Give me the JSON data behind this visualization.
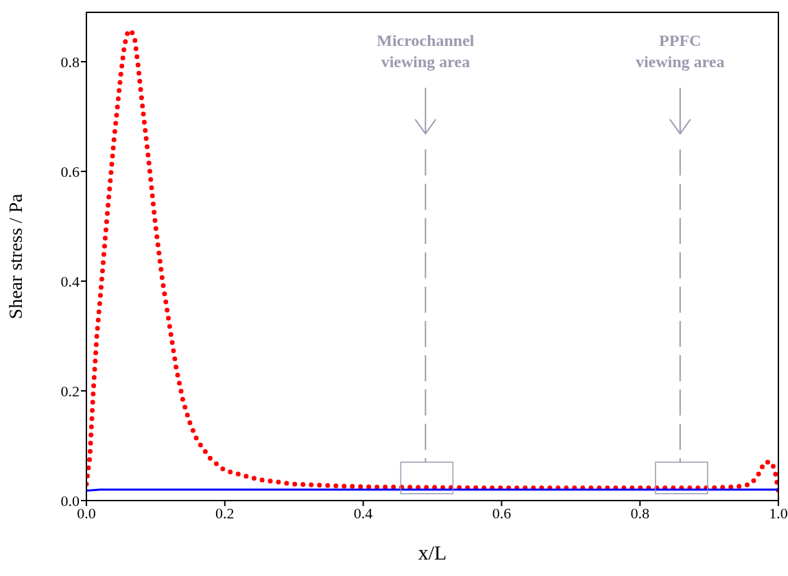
{
  "chart_data": {
    "type": "line",
    "xlabel": "x/L",
    "ylabel": "Shear stress / Pa",
    "xlim": [
      0,
      1
    ],
    "ylim": [
      0,
      0.89
    ],
    "xticks": [
      {
        "value": 0,
        "label": "0.0"
      },
      {
        "value": 0.2,
        "label": "0.2"
      },
      {
        "value": 0.4,
        "label": "0.4"
      },
      {
        "value": 0.6,
        "label": "0.6"
      },
      {
        "value": 0.8,
        "label": "0.8"
      },
      {
        "value": 1,
        "label": "1.0"
      }
    ],
    "yticks": [
      {
        "value": 0,
        "label": "0.0"
      },
      {
        "value": 0.2,
        "label": "0.2"
      },
      {
        "value": 0.4,
        "label": "0.4"
      },
      {
        "value": 0.6,
        "label": "0.6"
      },
      {
        "value": 0.8,
        "label": "0.8"
      }
    ],
    "series": [
      {
        "color": "#ff0000",
        "line_style": "dotted",
        "x": [
          0,
          0.005,
          0.01,
          0.015,
          0.02,
          0.03,
          0.04,
          0.05,
          0.055,
          0.06,
          0.065,
          0.07,
          0.075,
          0.08,
          0.09,
          0.1,
          0.11,
          0.12,
          0.13,
          0.14,
          0.15,
          0.16,
          0.18,
          0.2,
          0.25,
          0.3,
          0.4,
          0.5,
          0.6,
          0.7,
          0.8,
          0.9,
          0.94,
          0.96,
          0.97,
          0.98,
          0.99,
          0.995,
          1
        ],
        "values": [
          0.03,
          0.08,
          0.2,
          0.3,
          0.37,
          0.52,
          0.66,
          0.78,
          0.83,
          0.855,
          0.857,
          0.84,
          0.79,
          0.73,
          0.62,
          0.5,
          0.4,
          0.32,
          0.24,
          0.18,
          0.14,
          0.11,
          0.075,
          0.055,
          0.038,
          0.03,
          0.025,
          0.024,
          0.023,
          0.023,
          0.023,
          0.023,
          0.025,
          0.03,
          0.045,
          0.07,
          0.07,
          0.055,
          0.018
        ]
      },
      {
        "color": "#0000ff",
        "line_style": "solid",
        "x": [
          0,
          0.02,
          1
        ],
        "values": [
          0.018,
          0.02,
          0.02
        ]
      }
    ],
    "ref_lines": [
      {
        "axis": "x",
        "value": 0.49,
        "label": "Microchannel\nviewing area",
        "color": "#9a9ab0",
        "line_style": "dashed"
      },
      {
        "axis": "x",
        "value": 0.858,
        "label": "PPFC\nviewing area",
        "color": "#9a9ab0",
        "line_style": "dashed"
      }
    ]
  }
}
